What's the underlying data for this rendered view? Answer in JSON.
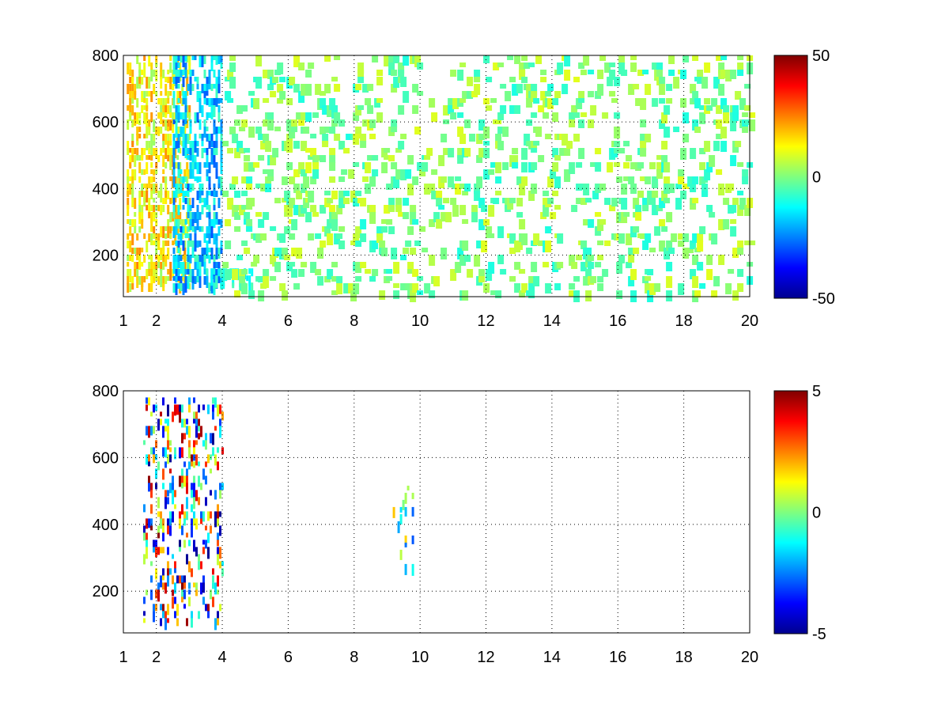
{
  "chart_data": [
    {
      "type": "heatmap",
      "title": "",
      "xlabel": "",
      "ylabel": "",
      "xlim": [
        1,
        20
      ],
      "ylim": [
        75,
        800
      ],
      "x_ticks": [
        1,
        2,
        4,
        6,
        8,
        10,
        12,
        14,
        16,
        18,
        20
      ],
      "x_tick_labels": [
        "1",
        "2",
        "4",
        "6",
        "8",
        "10",
        "12",
        "14",
        "16",
        "18",
        "20"
      ],
      "y_ticks": [
        200,
        400,
        600,
        800
      ],
      "y_tick_labels": [
        "200",
        "400",
        "600",
        "800"
      ],
      "grid": true,
      "colormap": "jet",
      "colorbar": {
        "range": [
          -50,
          50
        ],
        "ticks": [
          -50,
          0,
          50
        ],
        "tick_labels": [
          "-50",
          "0",
          "50"
        ]
      },
      "description_regions": [
        {
          "x": [
            1.1,
            3.0
          ],
          "y": [
            100,
            800
          ],
          "value_range": [
            2,
            25
          ]
        },
        {
          "x": [
            2.5,
            4.0
          ],
          "y": [
            100,
            800
          ],
          "value_range": [
            -30,
            -5
          ]
        },
        {
          "x": [
            3.5,
            5.0
          ],
          "y": [
            110,
            160
          ],
          "value_range": [
            -15,
            -5
          ]
        },
        {
          "x": [
            4.0,
            20.0
          ],
          "y": [
            75,
            800
          ],
          "value_range": [
            -10,
            10
          ]
        }
      ]
    },
    {
      "type": "heatmap",
      "title": "",
      "xlabel": "",
      "ylabel": "",
      "xlim": [
        1,
        20
      ],
      "ylim": [
        75,
        800
      ],
      "x_ticks": [
        1,
        2,
        4,
        6,
        8,
        10,
        12,
        14,
        16,
        18,
        20
      ],
      "x_tick_labels": [
        "1",
        "2",
        "4",
        "6",
        "8",
        "10",
        "12",
        "14",
        "16",
        "18",
        "20"
      ],
      "y_ticks": [
        200,
        400,
        600,
        800
      ],
      "y_tick_labels": [
        "200",
        "400",
        "600",
        "800"
      ],
      "grid": true,
      "colormap": "jet",
      "colorbar": {
        "range": [
          -5,
          5
        ],
        "ticks": [
          -5,
          0,
          5
        ],
        "tick_labels": [
          "-5",
          "0",
          "5"
        ]
      },
      "description_regions": [
        {
          "x": [
            1.6,
            4.0
          ],
          "y": [
            100,
            780
          ],
          "value_range": [
            -5,
            5
          ]
        },
        {
          "x": [
            9.1,
            9.8
          ],
          "y": [
            250,
            580
          ],
          "value_range": [
            -3,
            2
          ]
        }
      ]
    }
  ]
}
